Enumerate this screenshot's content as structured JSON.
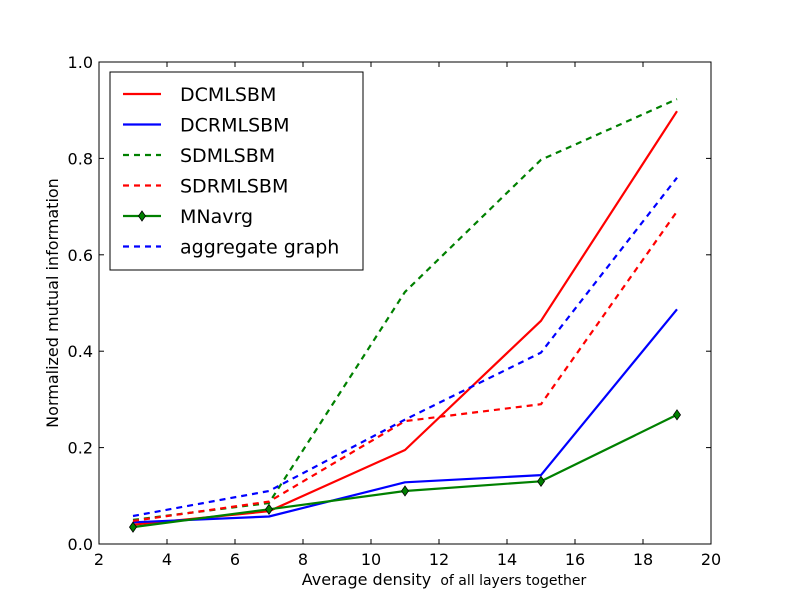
{
  "chart_data": {
    "type": "line",
    "title": "",
    "xlabel_main": "Average density",
    "xlabel_suffix": "of all layers together",
    "ylabel": "Normalized mutual information",
    "xlim": [
      2,
      20
    ],
    "ylim": [
      0.0,
      1.0
    ],
    "x_ticks": [
      2,
      4,
      6,
      8,
      10,
      12,
      14,
      16,
      18,
      20
    ],
    "x_tick_labels": [
      "2",
      "4",
      "6",
      "8",
      "10",
      "12",
      "14",
      "16",
      "18",
      "20"
    ],
    "y_ticks": [
      0.0,
      0.2,
      0.4,
      0.6,
      0.8,
      1.0
    ],
    "y_tick_labels": [
      "0.0",
      "0.2",
      "0.4",
      "0.6",
      "0.8",
      "1.0"
    ],
    "legend_position": "top-left",
    "x": [
      3,
      7,
      11,
      15,
      19
    ],
    "series": [
      {
        "name": "DCMLSBM",
        "values": [
          0.04,
          0.068,
          0.195,
          0.463,
          0.898
        ],
        "color": "#ff0000",
        "style": "solid",
        "marker": "none"
      },
      {
        "name": "DCRMLSBM",
        "values": [
          0.045,
          0.057,
          0.128,
          0.143,
          0.487
        ],
        "color": "#0000ff",
        "style": "solid",
        "marker": "none"
      },
      {
        "name": "SDMLSBM",
        "values": [
          0.05,
          0.085,
          0.523,
          0.797,
          0.923
        ],
        "color": "#008000",
        "style": "dashed",
        "marker": "none"
      },
      {
        "name": "SDRMLSBM",
        "values": [
          0.048,
          0.088,
          0.255,
          0.29,
          0.69
        ],
        "color": "#ff0000",
        "style": "dashed",
        "marker": "none"
      },
      {
        "name": "MNavrg",
        "values": [
          0.035,
          0.072,
          0.11,
          0.13,
          0.268
        ],
        "color": "#008000",
        "style": "solid",
        "marker": "diamond"
      },
      {
        "name": "aggregate graph",
        "values": [
          0.058,
          0.11,
          0.258,
          0.397,
          0.76
        ],
        "color": "#0000ff",
        "style": "dashed",
        "marker": "none"
      }
    ]
  }
}
